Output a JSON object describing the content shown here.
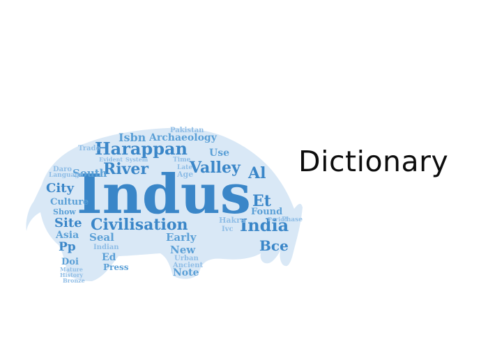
{
  "title": "Dictionary",
  "accent_color": "#3a86c8",
  "cloud_words": {
    "main": "Indus",
    "large": [
      "Harappan",
      "Civilisation",
      "Valley",
      "River",
      "India",
      "City",
      "Site",
      "Bce",
      "Et",
      "Al"
    ],
    "medium": [
      "Isbn",
      "Archaeology",
      "South",
      "Pakistan",
      "Culture",
      "Asia",
      "Pp",
      "Seal",
      "Early",
      "New",
      "Ed",
      "Doi",
      "Show",
      "Found",
      "Use",
      "Age",
      "Note",
      "Urban",
      "Ancient",
      "Press",
      "Hakra",
      "Ivc",
      "Indian",
      "Period",
      "Phase",
      "Trade",
      "Language",
      "Daro",
      "System",
      "Evident",
      "Time",
      "Late",
      "Mature",
      "History",
      "Bronze"
    ]
  }
}
